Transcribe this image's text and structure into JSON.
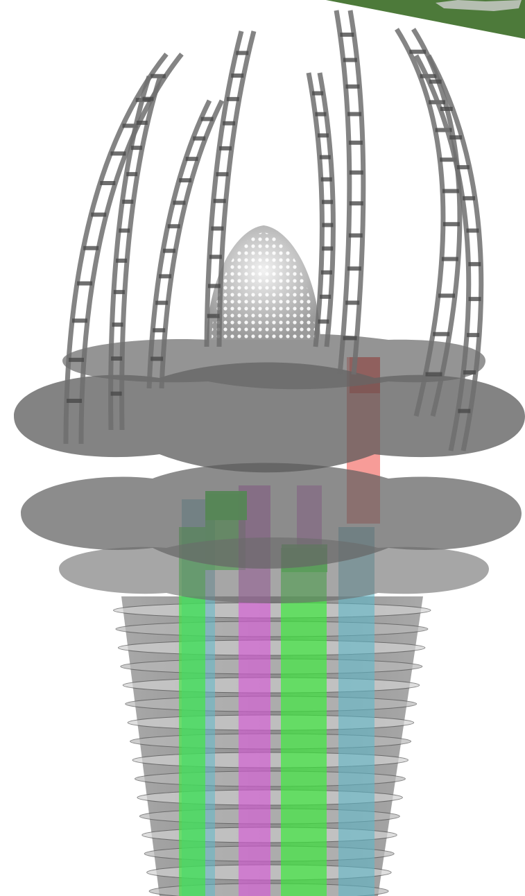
{
  "figure": {
    "background_color": "#ffffff",
    "frame_color": "#6e6e6e",
    "frame_edge_color": "#4a4a4a",
    "slab_color": "#5f5f5f",
    "dome_color": "#d9d9d9",
    "inset_color": "#4d7a3a",
    "core_colors": {
      "green": "#3ee83e",
      "magenta": "#d65ad6",
      "cyan": "#5fb8c8",
      "red": "#f04b43"
    }
  }
}
